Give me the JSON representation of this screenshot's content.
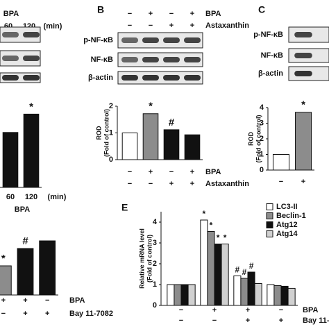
{
  "chart_data": [
    {
      "type": "bar",
      "top_labels": [
        "BPA",
        "60",
        "120",
        "(min)"
      ],
      "blot_rows": 3,
      "categories": [
        "60",
        "120"
      ],
      "x_unit": "(min)",
      "xlabel": "BPA",
      "values": [
        1.65,
        2.2
      ],
      "colors": [
        "#111111",
        "#111111"
      ],
      "annotations": [
        null,
        "*"
      ],
      "ylim": [
        0,
        2.5
      ]
    },
    {
      "type": "bar",
      "panel_label": "B",
      "blot_labels": [
        "p-NF-κB",
        "NF-κB",
        "β-actin"
      ],
      "conditions": [
        {
          "name": "BPA",
          "signs": [
            "−",
            "+",
            "−",
            "+"
          ]
        },
        {
          "name": "Astaxanthin",
          "signs": [
            "−",
            "−",
            "+",
            "+"
          ]
        }
      ],
      "values": [
        1,
        1.72,
        1.12,
        0.93
      ],
      "colors": [
        "#ffffff",
        "#8c8c8c",
        "#111111",
        "#111111"
      ],
      "annotations": [
        null,
        "*",
        "#",
        null
      ],
      "ylim": [
        0,
        2
      ],
      "yticks": [
        0,
        1,
        2
      ],
      "ylabel": [
        "ROD",
        "(Fold of control)"
      ]
    },
    {
      "type": "bar",
      "panel_label": "C",
      "blot_labels": [
        "p-NF-κB",
        "NF-κB",
        "β-actin"
      ],
      "conditions": [
        {
          "signs": [
            "−",
            "+"
          ]
        }
      ],
      "values": [
        1,
        3.7
      ],
      "colors": [
        "#ffffff",
        "#8c8c8c"
      ],
      "annotations": [
        null,
        "*"
      ],
      "ylim": [
        0,
        4
      ],
      "yticks": [
        0,
        1,
        2,
        3,
        4
      ],
      "ylabel": [
        "ROD",
        "(Fold of control)"
      ]
    },
    {
      "type": "bar",
      "conditions": [
        {
          "name": "BPA",
          "signs": [
            "+",
            "+",
            "−"
          ]
        },
        {
          "name": "Bay 11-7082",
          "signs": [
            "−",
            "+",
            "+"
          ]
        }
      ],
      "values": [
        2.1,
        3.35,
        3.9
      ],
      "colors": [
        "#8c8c8c",
        "#111111",
        "#111111"
      ],
      "annotations": [
        "*",
        "#",
        null
      ],
      "ylim": [
        0,
        4
      ]
    },
    {
      "type": "grouped-bar",
      "panel_label": "E",
      "conditions": [
        {
          "name": "BPA",
          "signs": [
            "−",
            "+",
            "+",
            "−"
          ]
        },
        {
          "name": "Bay 11-7082",
          "signs": [
            "−",
            "−",
            "+",
            "+"
          ]
        }
      ],
      "series": [
        {
          "name": "LC3-II",
          "color": "#ffffff",
          "values": [
            1,
            4.1,
            1.42,
            1.0
          ],
          "annotations": [
            null,
            "*",
            "#",
            null
          ]
        },
        {
          "name": "Beclin-1",
          "color": "#8c8c8c",
          "values": [
            1,
            3.55,
            1.3,
            0.95
          ],
          "annotations": [
            null,
            "*",
            "#",
            null
          ]
        },
        {
          "name": "Atg12",
          "color": "#111111",
          "values": [
            1,
            2.95,
            1.6,
            0.92
          ],
          "annotations": [
            null,
            "*",
            "#",
            null
          ]
        },
        {
          "name": "Atg14",
          "color": "#d0d0d0",
          "values": [
            1,
            2.95,
            1.05,
            0.82
          ],
          "annotations": [
            null,
            "*",
            null,
            null
          ]
        }
      ],
      "ylim": [
        0,
        4.5
      ],
      "yticks": [
        0,
        1,
        2,
        3,
        4
      ],
      "ylabel": [
        "Relative mRNA level",
        "(Fold of control)"
      ]
    }
  ]
}
